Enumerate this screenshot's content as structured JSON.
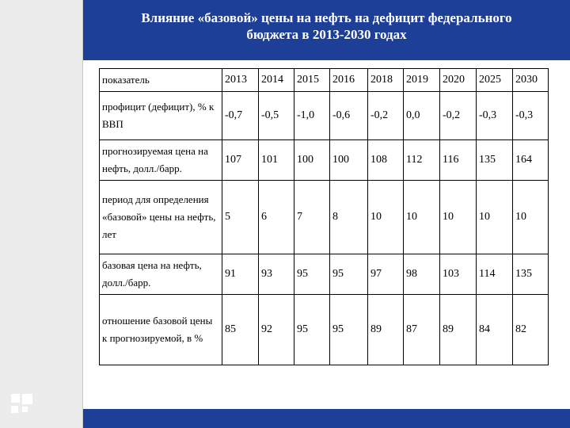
{
  "title": {
    "line1": "Влияние «базовой» цены на нефть на дефицит федерального",
    "line2": "бюджета в 2013-2030 годах"
  },
  "table": {
    "header": [
      "показатель",
      "2013",
      "2014",
      "2015",
      "2016",
      "2018",
      "2019",
      "2020",
      "2025",
      "2030"
    ],
    "rows": [
      {
        "label": "профицит (дефицит), % к ВВП",
        "values": [
          "-0,7",
          "-0,5",
          "-1,0",
          "-0,6",
          "-0,2",
          "0,0",
          "-0,2",
          "-0,3",
          "-0,3"
        ]
      },
      {
        "label": "прогнозируемая цена на нефть, долл./барр.",
        "values": [
          "107",
          "101",
          "100",
          "100",
          "108",
          "112",
          "116",
          "135",
          "164"
        ]
      },
      {
        "label": "период для определения «базовой» цены на нефть, лет",
        "values": [
          "5",
          "6",
          "7",
          "8",
          "10",
          "10",
          "10",
          "10",
          "10"
        ]
      },
      {
        "label": "базовая цена на нефть, долл./барр.",
        "values": [
          "91",
          "93",
          "95",
          "95",
          "97",
          "98",
          "103",
          "114",
          "135"
        ]
      },
      {
        "label": "отношение базовой цены к прогнозируемой, в %",
        "values": [
          "85",
          "92",
          "95",
          "95",
          "89",
          "87",
          "89",
          "84",
          "82"
        ]
      }
    ]
  },
  "colors": {
    "title_bar": "#1e3f97",
    "left_bar": "#ececec"
  },
  "logo_icon": "four-squares-icon"
}
